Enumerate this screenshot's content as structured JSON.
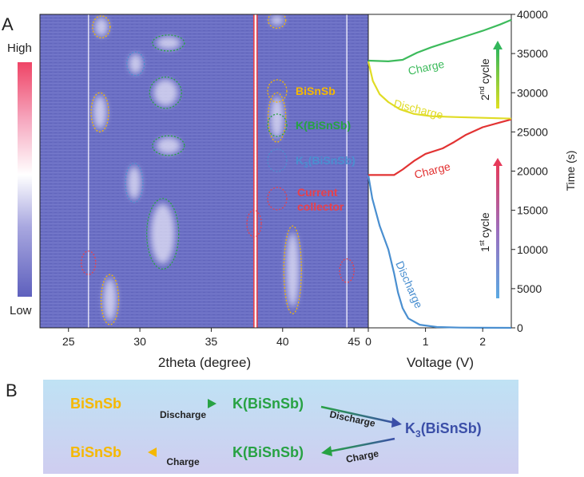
{
  "panels": {
    "a": "A",
    "b": "B"
  },
  "colors": {
    "bisnsb": "#f5b800",
    "k_phase": "#27a243",
    "k3_phase": "#3b4fa8",
    "current_collector": "#e8404a",
    "charge_1": "#e23333",
    "discharge_1": "#4a8fd0",
    "charge_2": "#3dbb5c",
    "discharge_2": "#e0dc25",
    "heatmap_base": "#6b6fc4",
    "panel_b_bg_top": "#b9def2",
    "panel_b_bg_bottom": "#cfcdf0"
  },
  "chart_data": [
    {
      "type": "heatmap",
      "xlabel": "2theta (degree)",
      "xlim": [
        23,
        46
      ],
      "x_ticks": [
        25,
        30,
        35,
        40,
        45
      ],
      "ylim": [
        0,
        40000
      ],
      "colorbar": {
        "high_label": "High",
        "low_label": "Low"
      },
      "legend": [
        {
          "label": "BiSnSb",
          "color": "#f5b800"
        },
        {
          "label": "K(BiSnSb)",
          "color": "#27a243"
        },
        {
          "label_main": "K",
          "label_sub": "3",
          "label_rest": "(BiSnSb)",
          "color": "#4a8fd0"
        },
        {
          "label": "Current collector",
          "lines": [
            "Current",
            "collector"
          ],
          "color": "#e8404a"
        }
      ],
      "sharp_lines_deg": [
        26.4,
        38.1,
        44.5
      ],
      "reflections": [
        {
          "phase": "BiSnSb",
          "two_theta": 27.3,
          "time_s": [
            37000,
            39800
          ]
        },
        {
          "phase": "K(BiSnSb)",
          "two_theta": 32.0,
          "time_s": [
            35400,
            37300
          ]
        },
        {
          "phase": "K3(BiSnSb)",
          "two_theta": 29.7,
          "time_s": [
            32200,
            35200
          ]
        },
        {
          "phase": "K(BiSnSb)",
          "two_theta": 31.8,
          "time_s": [
            28000,
            32000
          ]
        },
        {
          "phase": "BiSnSb",
          "two_theta": 27.2,
          "time_s": [
            25000,
            30000
          ]
        },
        {
          "phase": "K(BiSnSb)",
          "two_theta": 32.0,
          "time_s": [
            22000,
            24500
          ]
        },
        {
          "phase": "K3(BiSnSb)",
          "two_theta": 29.6,
          "time_s": [
            16000,
            21000
          ]
        },
        {
          "phase": "K(BiSnSb)",
          "two_theta": 31.6,
          "time_s": [
            7500,
            16500
          ]
        },
        {
          "phase": "BiSnSb",
          "two_theta": 27.9,
          "time_s": [
            400,
            6800
          ]
        },
        {
          "phase": "BiSnSb",
          "two_theta": 39.6,
          "time_s": [
            38500,
            40000
          ]
        },
        {
          "phase": "BiSnSb",
          "two_theta": 39.6,
          "time_s": [
            23700,
            30000
          ]
        },
        {
          "phase": "BiSnSb",
          "two_theta": 40.7,
          "time_s": [
            1800,
            13000
          ]
        },
        {
          "phase": "Current collector",
          "two_theta": 26.4,
          "time_s": [
            6800,
            9800
          ]
        },
        {
          "phase": "Current collector",
          "two_theta": 38.0,
          "time_s": [
            11600,
            15000
          ]
        },
        {
          "phase": "Current collector",
          "two_theta": 44.5,
          "time_s": [
            5800,
            8800
          ]
        }
      ]
    },
    {
      "type": "line",
      "xlabel": "Voltage (V)",
      "ylabel": "Time (s)",
      "xlim": [
        0,
        2.5
      ],
      "ylim": [
        0,
        40000
      ],
      "x_ticks": [
        0,
        1,
        2
      ],
      "y_ticks": [
        0,
        5000,
        10000,
        15000,
        20000,
        25000,
        30000,
        35000,
        40000
      ],
      "cycle_labels": [
        {
          "num": "1",
          "sup": "st",
          "word": "cycle"
        },
        {
          "num": "2",
          "sup": "nd",
          "word": "cycle"
        }
      ],
      "series": [
        {
          "name": "Discharge",
          "cycle": 1,
          "color": "#4a8fd0",
          "x": [
            0.0,
            0.07,
            0.2,
            0.35,
            0.45,
            0.52,
            0.6,
            0.7,
            0.9,
            1.2,
            1.6,
            2.0,
            2.5
          ],
          "y": [
            19500,
            16500,
            13000,
            10000,
            7000,
            4500,
            2500,
            1200,
            400,
            100,
            30,
            10,
            0
          ]
        },
        {
          "name": "Charge",
          "cycle": 1,
          "color": "#e23333",
          "x": [
            0.0,
            0.45,
            0.6,
            0.8,
            1.0,
            1.3,
            1.5,
            1.7,
            2.0,
            2.3,
            2.5
          ],
          "y": [
            19500,
            19500,
            20200,
            21300,
            22200,
            22900,
            23700,
            24600,
            25600,
            26200,
            26600
          ]
        },
        {
          "name": "Discharge",
          "cycle": 2,
          "color": "#e0dc25",
          "x": [
            0.0,
            0.08,
            0.2,
            0.35,
            0.55,
            0.8,
            1.1,
            1.5,
            2.0,
            2.5
          ],
          "y": [
            34000,
            31500,
            29800,
            28800,
            27900,
            27300,
            27000,
            26900,
            26800,
            26700
          ]
        },
        {
          "name": "Charge",
          "cycle": 2,
          "color": "#3dbb5c",
          "x": [
            0.0,
            0.35,
            0.6,
            0.85,
            1.1,
            1.4,
            1.7,
            2.0,
            2.3,
            2.5
          ],
          "y": [
            34100,
            34000,
            34200,
            35100,
            35800,
            36500,
            37200,
            37900,
            38700,
            39300
          ]
        }
      ]
    }
  ],
  "scheme": {
    "row1": {
      "from": "BiSnSb",
      "arrow": "Discharge",
      "to": "K(BiSnSb)"
    },
    "diag_down": "Discharge",
    "product": {
      "main": "K",
      "sub": "3",
      "rest": "(BiSnSb)"
    },
    "diag_up": "Charge",
    "row2": {
      "from": "K(BiSnSb)",
      "arrow": "Charge",
      "to": "BiSnSb"
    }
  }
}
